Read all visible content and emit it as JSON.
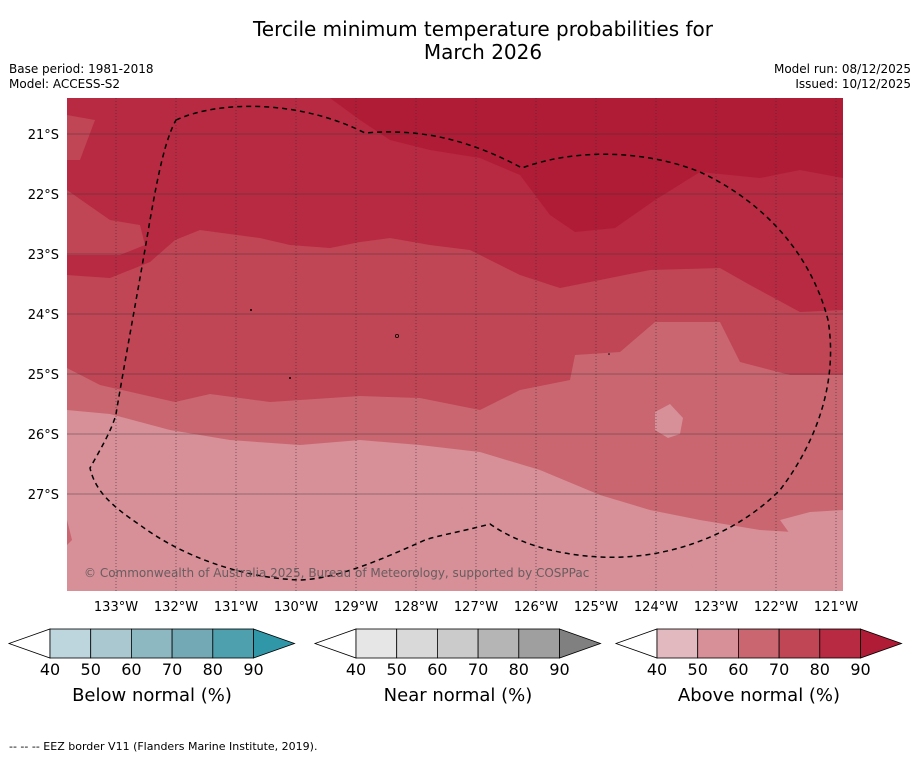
{
  "title_line1": "Tercile minimum temperature probabilities for",
  "title_line2": "March 2026",
  "base_period": "Base period: 1981-2018",
  "model": "Model: ACCESS-S2",
  "model_run": "Model run: 08/12/2025",
  "issued": "Issued: 10/12/2025",
  "map": {
    "lat_labels": [
      "21°S",
      "22°S",
      "23°S",
      "24°S",
      "25°S",
      "26°S",
      "27°S"
    ],
    "lon_labels": [
      "133°W",
      "132°W",
      "131°W",
      "130°W",
      "129°W",
      "128°W",
      "127°W",
      "126°W",
      "125°W",
      "124°W",
      "123°W",
      "122°W",
      "121°W"
    ],
    "copyright": "© Commonwealth of Australia 2025, Bureau of Meteorology, supported by COSPPac"
  },
  "colors": {
    "above": [
      "#e3b9c0",
      "#d78f98",
      "#c96670",
      "#c04555",
      "#b72a41",
      "#b01c36"
    ],
    "below": [
      "#bdd5dc",
      "#a9c8cf",
      "#8db8c2",
      "#72a9b5",
      "#4ea0ae",
      "#2f97a8"
    ],
    "near": [
      "#e6e6e6",
      "#d9d9d9",
      "#cbcbcb",
      "#b5b5b5",
      "#9f9f9f",
      "#808080"
    ]
  },
  "legends": [
    {
      "title": "Below normal (%)",
      "ticks": [
        "40",
        "50",
        "60",
        "70",
        "80",
        "90"
      ]
    },
    {
      "title": "Near normal (%)",
      "ticks": [
        "40",
        "50",
        "60",
        "70",
        "80",
        "90"
      ]
    },
    {
      "title": "Above normal (%)",
      "ticks": [
        "40",
        "50",
        "60",
        "70",
        "80",
        "90"
      ]
    }
  ],
  "footnote": "-- -- -- EEZ border V11 (Flanders Marine Institute, 2019)."
}
